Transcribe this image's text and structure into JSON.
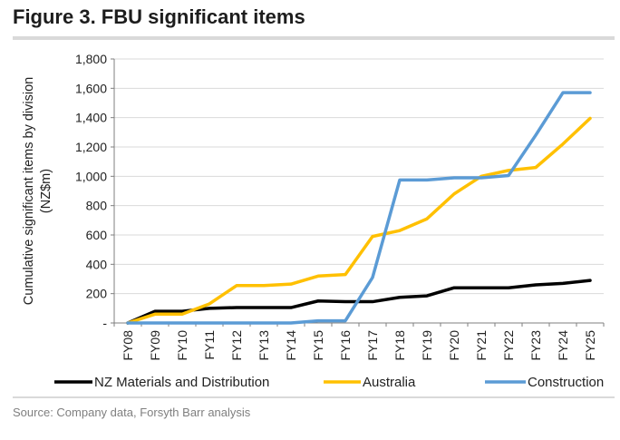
{
  "figure": {
    "title": "Figure 3. FBU significant items",
    "source": "Source: Company data,  Forsyth Barr analysis"
  },
  "chart_data": {
    "type": "line",
    "title": "Figure 3. FBU significant items",
    "ylabel_lines": [
      "Cumulative significant items by division",
      "(NZ$m)"
    ],
    "xlabel": "",
    "categories": [
      "FY08",
      "FY09",
      "FY10",
      "FY11",
      "FY12",
      "FY13",
      "FY14",
      "FY15",
      "FY16",
      "FY17",
      "FY18",
      "FY19",
      "FY20",
      "FY21",
      "FY22",
      "FY23",
      "FY24",
      "FY25"
    ],
    "ylim": [
      0,
      1800
    ],
    "yticks": [
      0,
      200,
      400,
      600,
      800,
      1000,
      1200,
      1400,
      1600,
      1800
    ],
    "ytick_labels": [
      "-",
      "200",
      "400",
      "600",
      "800",
      "1,000",
      "1,200",
      "1,400",
      "1,600",
      "1,800"
    ],
    "grid": "horizontal",
    "legend": "bottom",
    "series": [
      {
        "name": "NZ Materials and Distribution",
        "color": "#000000",
        "values": [
          0,
          80,
          80,
          100,
          105,
          105,
          105,
          150,
          145,
          145,
          175,
          185,
          240,
          240,
          240,
          260,
          270,
          290
        ]
      },
      {
        "name": "Australia",
        "color": "#ffc000",
        "values": [
          0,
          60,
          60,
          130,
          255,
          255,
          265,
          320,
          330,
          590,
          630,
          710,
          880,
          1000,
          1040,
          1060,
          1220,
          1395
        ]
      },
      {
        "name": "Construction",
        "color": "#5b9bd5",
        "values": [
          0,
          0,
          0,
          0,
          0,
          0,
          0,
          15,
          15,
          310,
          975,
          975,
          990,
          990,
          1005,
          1280,
          1570,
          1570
        ]
      }
    ]
  }
}
